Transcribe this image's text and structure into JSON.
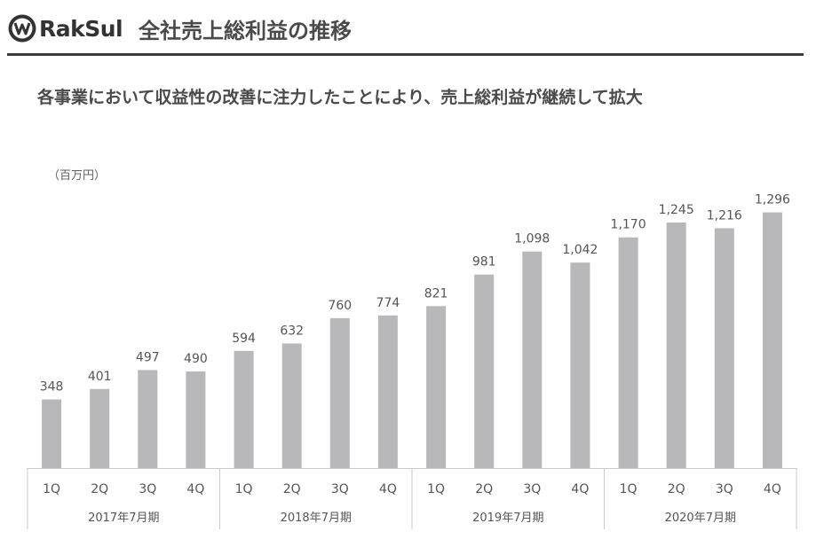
{
  "header": {
    "brand": "RakSul",
    "page_title": "全社売上総利益の推移"
  },
  "subtitle": "各事業において収益性の改善に注力したことにより、売上総利益が継続して拡大",
  "colors": {
    "bar": "#b8b8ba",
    "rule": "#3c3c3c",
    "text": "#4a4a4a"
  },
  "chart_data": {
    "type": "bar",
    "unit": "（百万円）",
    "categories": [
      "1Q",
      "2Q",
      "3Q",
      "4Q",
      "1Q",
      "2Q",
      "3Q",
      "4Q",
      "1Q",
      "2Q",
      "3Q",
      "4Q",
      "1Q",
      "2Q",
      "3Q",
      "4Q"
    ],
    "groups": [
      "2017年7月期",
      "2018年7月期",
      "2019年7月期",
      "2020年7月期"
    ],
    "values": [
      348,
      401,
      497,
      490,
      594,
      632,
      760,
      774,
      821,
      981,
      1098,
      1042,
      1170,
      1245,
      1216,
      1296
    ],
    "value_labels": [
      "348",
      "401",
      "497",
      "490",
      "594",
      "632",
      "760",
      "774",
      "821",
      "981",
      "1,098",
      "1,042",
      "1,170",
      "1,245",
      "1,216",
      "1,296"
    ],
    "ylim": [
      0,
      1400
    ],
    "grid": false,
    "legend": "none"
  }
}
